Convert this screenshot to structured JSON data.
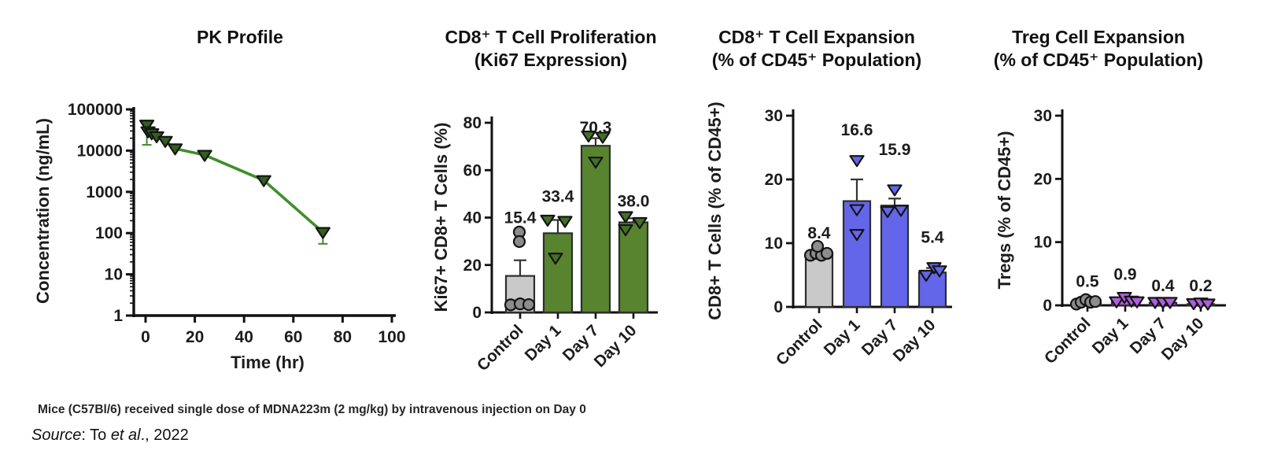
{
  "footer": {
    "note": "Mice (C57Bl/6) received single dose of MDNA223m (2 mg/kg) by intravenous injection on Day 0",
    "source_label": "Source",
    "source_sep": ": To ",
    "source_etal": "et al",
    "source_tail": "., 2022"
  },
  "chart_data": [
    {
      "id": "pk",
      "type": "line",
      "title": "PK Profile",
      "xlabel": "Time (hr)",
      "ylabel": "Concentration (ng/mL)",
      "yscale": "log",
      "ylim": [
        1,
        100000
      ],
      "yticks": [
        1,
        10,
        100,
        1000,
        10000,
        100000
      ],
      "ytick_labels": [
        "1",
        "10",
        "100",
        "1000",
        "10000",
        "100000"
      ],
      "xlim": [
        -5,
        102
      ],
      "xticks": [
        0,
        20,
        40,
        60,
        80,
        100
      ],
      "grid": false,
      "legend": "none",
      "line_color": "#3f8e2b",
      "marker": "triangle-down",
      "marker_fill": "#315f1c",
      "series": [
        {
          "name": "MDNA223m 2 mg/kg IV",
          "x": [
            0.5,
            1,
            2.5,
            4.5,
            8,
            12,
            24,
            48,
            72
          ],
          "y": [
            42000,
            29000,
            26000,
            22000,
            17000,
            11200,
            7800,
            1900,
            105
          ],
          "err_lo": [
            13800,
            null,
            null,
            null,
            null,
            null,
            null,
            null,
            55
          ]
        }
      ]
    },
    {
      "id": "ki67",
      "type": "bar",
      "title": "CD8⁺ T Cell Proliferation\n(Ki67 Expression)",
      "ylabel": "Ki67+ CD8+ T Cells (%)",
      "ylim": [
        0,
        80
      ],
      "yticks": [
        0,
        20,
        40,
        60,
        80
      ],
      "grid": false,
      "categories": [
        "Control",
        "Day 1",
        "Day 7",
        "Day 10"
      ],
      "values": [
        15.4,
        33.4,
        70.3,
        38.0
      ],
      "value_labels": [
        "15.4",
        "33.4",
        "70.3",
        "38.0"
      ],
      "label_y": [
        40,
        49,
        78,
        47
      ],
      "err_hi": [
        22,
        39,
        73.5,
        39.7
      ],
      "bar_colors": [
        "#c9c9c9",
        "#59842f",
        "#59842f",
        "#59842f"
      ],
      "point_marker": [
        "circle",
        "triangle-down",
        "triangle-down",
        "triangle-down"
      ],
      "point_fill": [
        "#8c8c8c",
        "#456f26",
        "#456f26",
        "#456f26"
      ],
      "points": [
        [
          [
            -1,
            33.9
          ],
          [
            -1,
            29.9
          ],
          [
            -12,
            3.2
          ],
          [
            0,
            3.6
          ],
          [
            11,
            3.3
          ]
        ],
        [
          [
            -13,
            39
          ],
          [
            9,
            38.5
          ],
          [
            -3,
            23
          ]
        ],
        [
          [
            -9,
            74.5
          ],
          [
            9,
            74
          ],
          [
            0,
            63.5
          ]
        ],
        [
          [
            -10,
            40.5
          ],
          [
            8,
            38
          ],
          [
            -10,
            35
          ]
        ]
      ]
    },
    {
      "id": "cd8exp",
      "type": "bar",
      "title": "CD8⁺ T Cell Expansion\n(% of CD45⁺ Population)",
      "ylabel": "CD8+ T Cells (% of CD45+)",
      "ylim": [
        0,
        30
      ],
      "yticks": [
        0,
        10,
        20,
        30
      ],
      "grid": false,
      "categories": [
        "Control",
        "Day 1",
        "Day 7",
        "Day 10"
      ],
      "values": [
        8.4,
        16.6,
        15.9,
        5.4
      ],
      "value_labels": [
        "8.4",
        "16.6",
        "15.9",
        "5.4"
      ],
      "label_y": [
        11.6,
        27.8,
        24.7,
        10.9
      ],
      "err_hi": [
        9,
        20,
        17,
        6.1
      ],
      "bar_colors": [
        "#c9c9c9",
        "#6366e8",
        "#6366e8",
        "#6366e8"
      ],
      "point_marker": [
        "circle",
        "triangle-down",
        "triangle-down",
        "triangle-down"
      ],
      "point_fill": [
        "#8c8c8c",
        "#6366e8",
        "#6366e8",
        "#6366e8"
      ],
      "points": [
        [
          [
            -11,
            8.1
          ],
          [
            -4,
            8.4
          ],
          [
            3,
            8.1
          ],
          [
            10,
            8.4
          ],
          [
            -2,
            9.5
          ]
        ],
        [
          [
            0,
            23
          ],
          [
            0,
            15.3
          ],
          [
            0,
            11.4
          ]
        ],
        [
          [
            0,
            18.4
          ],
          [
            -9,
            15
          ],
          [
            8,
            15.2
          ]
        ],
        [
          [
            -8,
            5.0
          ],
          [
            2,
            6.2
          ],
          [
            9,
            5.7
          ]
        ]
      ]
    },
    {
      "id": "treg",
      "type": "bar",
      "title": "Treg Cell Expansion\n(% of CD45⁺ Population)",
      "ylabel": "Tregs (% of CD45+)",
      "ylim": [
        0,
        30
      ],
      "yticks": [
        0,
        10,
        20,
        30
      ],
      "grid": false,
      "categories": [
        "Control",
        "Day 1",
        "Day 7",
        "Day 10"
      ],
      "values": [
        0.5,
        0.9,
        0.4,
        0.2
      ],
      "value_labels": [
        "0.5",
        "0.9",
        "0.4",
        "0.2"
      ],
      "label_y": [
        3.8,
        4.9,
        3.1,
        3.1
      ],
      "err_hi": [
        null,
        null,
        null,
        null
      ],
      "bar_colors": [
        "#c9c9c9",
        "#ae5fdd",
        "#ae5fdd",
        "#ae5fdd"
      ],
      "point_marker": [
        "circle",
        "triangle-down",
        "triangle-down",
        "triangle-down"
      ],
      "point_fill": [
        "#8c8c8c",
        "#ae5fdd",
        "#ae5fdd",
        "#ae5fdd"
      ],
      "points": [
        [
          [
            -14,
            0.2
          ],
          [
            -8,
            0.5
          ],
          [
            -2,
            0.9
          ],
          [
            4,
            0.5
          ],
          [
            10,
            0.6
          ]
        ],
        [
          [
            -11,
            0.6
          ],
          [
            -1,
            1.3
          ],
          [
            8,
            0.7
          ],
          [
            15,
            0.6
          ]
        ],
        [
          [
            -10,
            0.5
          ],
          [
            0,
            0.5
          ],
          [
            9,
            0.5
          ]
        ],
        [
          [
            -9,
            0.3
          ],
          [
            0,
            0.4
          ],
          [
            9,
            0.25
          ]
        ]
      ]
    }
  ]
}
